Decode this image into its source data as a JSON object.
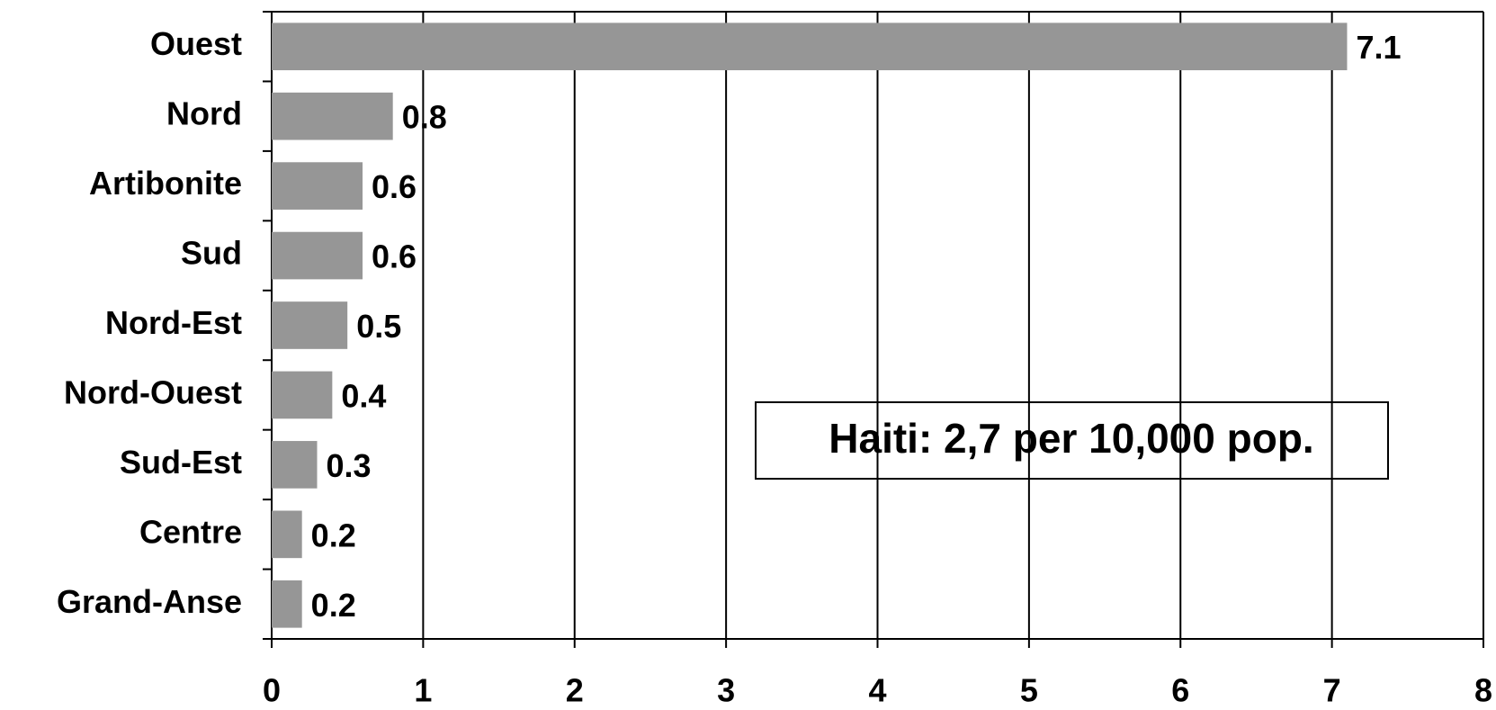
{
  "chart_data": {
    "type": "bar",
    "orientation": "horizontal",
    "categories": [
      "Ouest",
      "Nord",
      "Artibonite",
      "Sud",
      "Nord-Est",
      "Nord-Ouest",
      "Sud-Est",
      "Centre",
      "Grand-Anse"
    ],
    "values": [
      7.1,
      0.8,
      0.6,
      0.6,
      0.5,
      0.4,
      0.3,
      0.2,
      0.2
    ],
    "color": "#969696",
    "xlim": [
      0,
      8
    ],
    "xticks": [
      0,
      1,
      2,
      3,
      4,
      5,
      6,
      7,
      8
    ],
    "grid": true,
    "annotation": "Haiti: 2,7 per 10,000 pop."
  }
}
